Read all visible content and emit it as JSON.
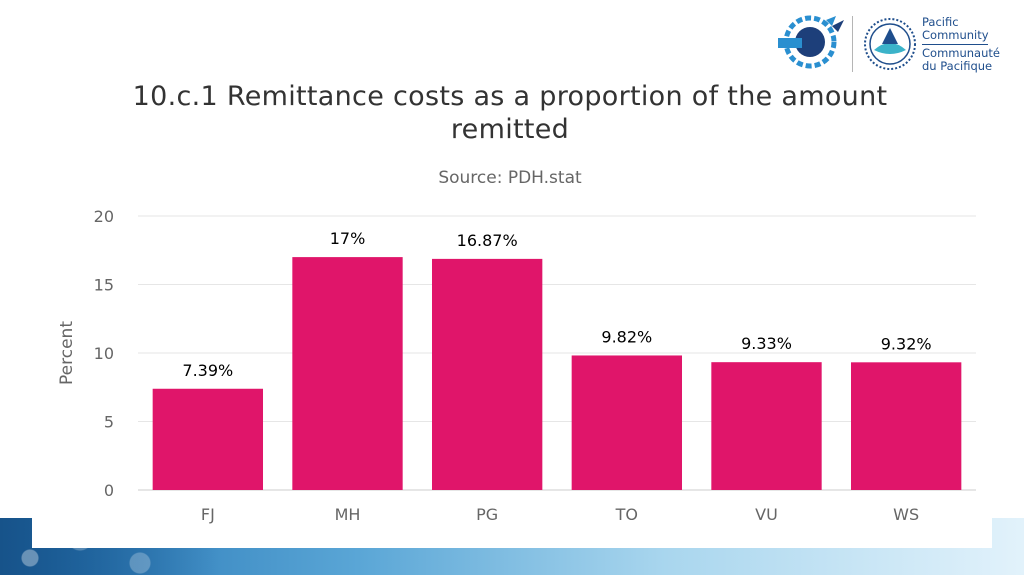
{
  "logo": {
    "org_en_1": "Pacific",
    "org_en_2": "Community",
    "org_fr_1": "Communauté",
    "org_fr_2": "du Pacifique"
  },
  "chart_data": {
    "type": "bar",
    "title_line1": "10.c.1 Remittance costs as a proportion of the amount",
    "title_line2": "remitted",
    "subtitle": "Source: PDH.stat",
    "ylabel": "Percent",
    "xlabel": "",
    "ylim": [
      0,
      20
    ],
    "yticks": [
      0,
      5,
      10,
      15,
      20
    ],
    "categories": [
      "FJ",
      "MH",
      "PG",
      "TO",
      "VU",
      "WS"
    ],
    "values": [
      7.39,
      17,
      16.87,
      9.82,
      9.33,
      9.32
    ],
    "data_labels": [
      "7.39%",
      "17%",
      "16.87%",
      "9.82%",
      "9.33%",
      "9.32%"
    ],
    "bar_color": "#e0156a",
    "grid": true,
    "legend": "none"
  }
}
